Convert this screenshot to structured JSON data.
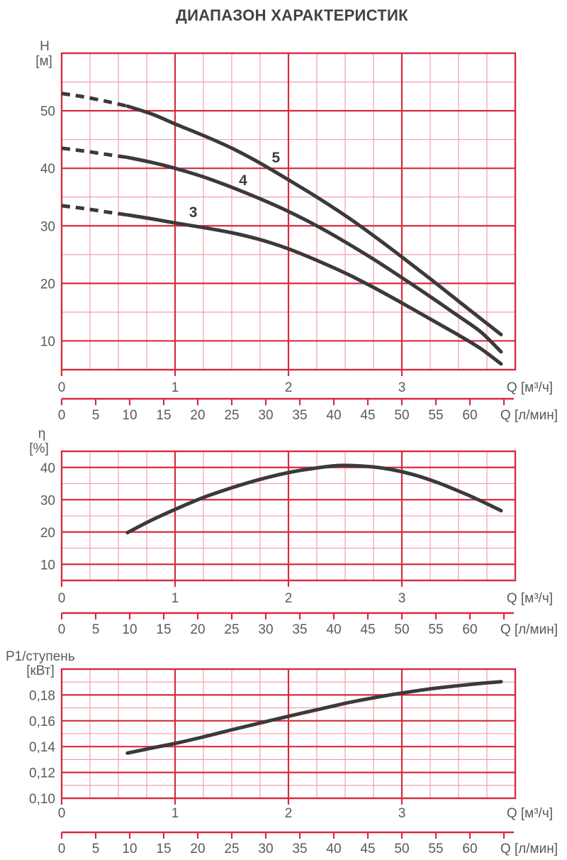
{
  "title": "ДИАПАЗОН ХАРАКТЕРИСТИК",
  "colors": {
    "grid_major": "#d72b3f",
    "grid_minor": "#f097a1",
    "axis": "#d72b3f",
    "curve": "#3a3a3c",
    "text": "#595a5c",
    "title_text": "#414042"
  },
  "labels": {
    "q_m3h": "Q [м³/ч]",
    "q_lmin": "Q [л/мин]",
    "chart1_y1": "H",
    "chart1_y2": "[м]",
    "chart2_y1": "η",
    "chart2_y2": "[%]",
    "chart3_y1": "P1/ступень",
    "chart3_y2": "[кВт]"
  },
  "lmin_axis": {
    "unit": "Q [л/мин]",
    "m3h_per_unit": 0.06,
    "max": 65,
    "ticks": [
      {
        "v": 0,
        "t": "0"
      },
      {
        "v": 5,
        "t": "5"
      },
      {
        "v": 10,
        "t": "10"
      },
      {
        "v": 15,
        "t": "15"
      },
      {
        "v": 20,
        "t": "20"
      },
      {
        "v": 25,
        "t": "25"
      },
      {
        "v": 30,
        "t": "30"
      },
      {
        "v": 35,
        "t": "35"
      },
      {
        "v": 40,
        "t": "40"
      },
      {
        "v": 45,
        "t": "45"
      },
      {
        "v": 50,
        "t": "50"
      },
      {
        "v": 55,
        "t": "55"
      },
      {
        "v": 60,
        "t": "60"
      },
      {
        "v": 65,
        "t": ""
      }
    ]
  },
  "chart_data": [
    {
      "type": "line",
      "name": "head-chart",
      "title": "Напор H от расхода Q, ступени 3/4/5",
      "xlabel": "Q [м³/ч]",
      "ylabel": "H [м]",
      "x": {
        "min": 0,
        "max": 4,
        "major_step": 1,
        "minor_step": 0.25,
        "ticks": [
          {
            "v": 0,
            "t": "0"
          },
          {
            "v": 1,
            "t": "1"
          },
          {
            "v": 2,
            "t": "2"
          },
          {
            "v": 3,
            "t": "3"
          }
        ]
      },
      "y": {
        "min": 5,
        "max": 60,
        "major_step": 10,
        "minor_step": 5,
        "ticks": [
          {
            "v": 10,
            "t": "10"
          },
          {
            "v": 20,
            "t": "20"
          },
          {
            "v": 30,
            "t": "30"
          },
          {
            "v": 40,
            "t": "40"
          },
          {
            "v": 50,
            "t": "50"
          }
        ]
      },
      "series": [
        {
          "label": "3",
          "label_q": 1.16,
          "label_h": 32.4,
          "dashed_points": [
            [
              0,
              33.5
            ],
            [
              0.2,
              33.0
            ],
            [
              0.4,
              32.4
            ],
            [
              0.58,
              31.9
            ]
          ],
          "points": [
            [
              0.58,
              31.9
            ],
            [
              0.8,
              31.2
            ],
            [
              1.0,
              30.5
            ],
            [
              1.25,
              29.7
            ],
            [
              1.5,
              28.8
            ],
            [
              1.75,
              27.6
            ],
            [
              2.0,
              26.0
            ],
            [
              2.25,
              24.0
            ],
            [
              2.5,
              21.8
            ],
            [
              2.75,
              19.3
            ],
            [
              3.0,
              16.6
            ],
            [
              3.25,
              13.8
            ],
            [
              3.5,
              11.0
            ],
            [
              3.7,
              8.6
            ],
            [
              3.875,
              6.0
            ]
          ]
        },
        {
          "label": "4",
          "label_q": 1.6,
          "label_h": 37.9,
          "dashed_points": [
            [
              0,
              43.5
            ],
            [
              0.2,
              43.0
            ],
            [
              0.4,
              42.4
            ],
            [
              0.58,
              41.9
            ]
          ],
          "points": [
            [
              0.58,
              41.9
            ],
            [
              0.8,
              41.0
            ],
            [
              1.0,
              40.0
            ],
            [
              1.25,
              38.5
            ],
            [
              1.5,
              36.7
            ],
            [
              1.75,
              34.7
            ],
            [
              2.0,
              32.5
            ],
            [
              2.25,
              30.0
            ],
            [
              2.5,
              27.2
            ],
            [
              2.75,
              24.2
            ],
            [
              3.0,
              21.0
            ],
            [
              3.25,
              17.7
            ],
            [
              3.5,
              14.3
            ],
            [
              3.7,
              11.5
            ],
            [
              3.875,
              8.1
            ]
          ]
        },
        {
          "label": "5",
          "label_q": 1.89,
          "label_h": 41.9,
          "dashed_points": [
            [
              0,
              53.0
            ],
            [
              0.2,
              52.4
            ],
            [
              0.4,
              51.6
            ],
            [
              0.58,
              50.8
            ]
          ],
          "points": [
            [
              0.58,
              50.8
            ],
            [
              0.8,
              49.4
            ],
            [
              1.0,
              47.7
            ],
            [
              1.25,
              45.7
            ],
            [
              1.5,
              43.5
            ],
            [
              1.75,
              40.9
            ],
            [
              2.0,
              38.0
            ],
            [
              2.25,
              35.0
            ],
            [
              2.5,
              31.8
            ],
            [
              2.75,
              28.3
            ],
            [
              3.0,
              24.6
            ],
            [
              3.25,
              20.8
            ],
            [
              3.5,
              16.9
            ],
            [
              3.7,
              13.8
            ],
            [
              3.875,
              11.1
            ]
          ]
        }
      ]
    },
    {
      "type": "line",
      "name": "efficiency-chart",
      "title": "КПД η от расхода Q",
      "xlabel": "Q [м³/ч]",
      "ylabel": "η [%]",
      "x": {
        "min": 0,
        "max": 4,
        "major_step": 1,
        "minor_step": 0.25,
        "ticks": [
          {
            "v": 0,
            "t": "0"
          },
          {
            "v": 1,
            "t": "1"
          },
          {
            "v": 2,
            "t": "2"
          },
          {
            "v": 3,
            "t": "3"
          }
        ]
      },
      "y": {
        "min": 5,
        "max": 45,
        "major_step": 10,
        "minor_step": 5,
        "ticks": [
          {
            "v": 10,
            "t": "10"
          },
          {
            "v": 20,
            "t": "20"
          },
          {
            "v": 30,
            "t": "30"
          },
          {
            "v": 40,
            "t": "40"
          }
        ]
      },
      "series": [
        {
          "label": "",
          "label_q": null,
          "label_h": null,
          "dashed_points": [],
          "points": [
            [
              0.58,
              19.8
            ],
            [
              0.8,
              23.8
            ],
            [
              1.0,
              27.0
            ],
            [
              1.25,
              30.7
            ],
            [
              1.5,
              33.7
            ],
            [
              1.75,
              36.3
            ],
            [
              2.0,
              38.4
            ],
            [
              2.2,
              39.6
            ],
            [
              2.45,
              40.6
            ],
            [
              2.7,
              40.3
            ],
            [
              2.9,
              39.4
            ],
            [
              3.1,
              37.8
            ],
            [
              3.3,
              35.5
            ],
            [
              3.5,
              32.7
            ],
            [
              3.7,
              29.6
            ],
            [
              3.875,
              26.6
            ]
          ]
        }
      ]
    },
    {
      "type": "line",
      "name": "power-chart",
      "title": "Мощность P1 на ступень от расхода Q",
      "xlabel": "Q [м³/ч]",
      "ylabel": "P1/ступень [кВт]",
      "x": {
        "min": 0,
        "max": 4,
        "major_step": 1,
        "minor_step": 0.25,
        "ticks": [
          {
            "v": 0,
            "t": "0"
          },
          {
            "v": 1,
            "t": "1"
          },
          {
            "v": 2,
            "t": "2"
          },
          {
            "v": 3,
            "t": "3"
          }
        ]
      },
      "y": {
        "min": 0.1,
        "max": 0.2,
        "major_step": 0.02,
        "minor_step": 0.01,
        "ticks": [
          {
            "v": 0.1,
            "t": "0,10"
          },
          {
            "v": 0.12,
            "t": "0,12"
          },
          {
            "v": 0.14,
            "t": "0,14"
          },
          {
            "v": 0.16,
            "t": "0,16"
          },
          {
            "v": 0.18,
            "t": "0,18"
          }
        ]
      },
      "series": [
        {
          "label": "",
          "label_q": null,
          "label_h": null,
          "dashed_points": [],
          "points": [
            [
              0.58,
              0.135
            ],
            [
              0.8,
              0.139
            ],
            [
              1.0,
              0.1425
            ],
            [
              1.25,
              0.1475
            ],
            [
              1.5,
              0.153
            ],
            [
              1.75,
              0.1583
            ],
            [
              2.0,
              0.1635
            ],
            [
              2.25,
              0.1685
            ],
            [
              2.5,
              0.1735
            ],
            [
              2.75,
              0.1778
            ],
            [
              3.0,
              0.1815
            ],
            [
              3.25,
              0.1847
            ],
            [
              3.5,
              0.1872
            ],
            [
              3.7,
              0.189
            ],
            [
              3.875,
              0.1903
            ]
          ]
        }
      ]
    }
  ]
}
